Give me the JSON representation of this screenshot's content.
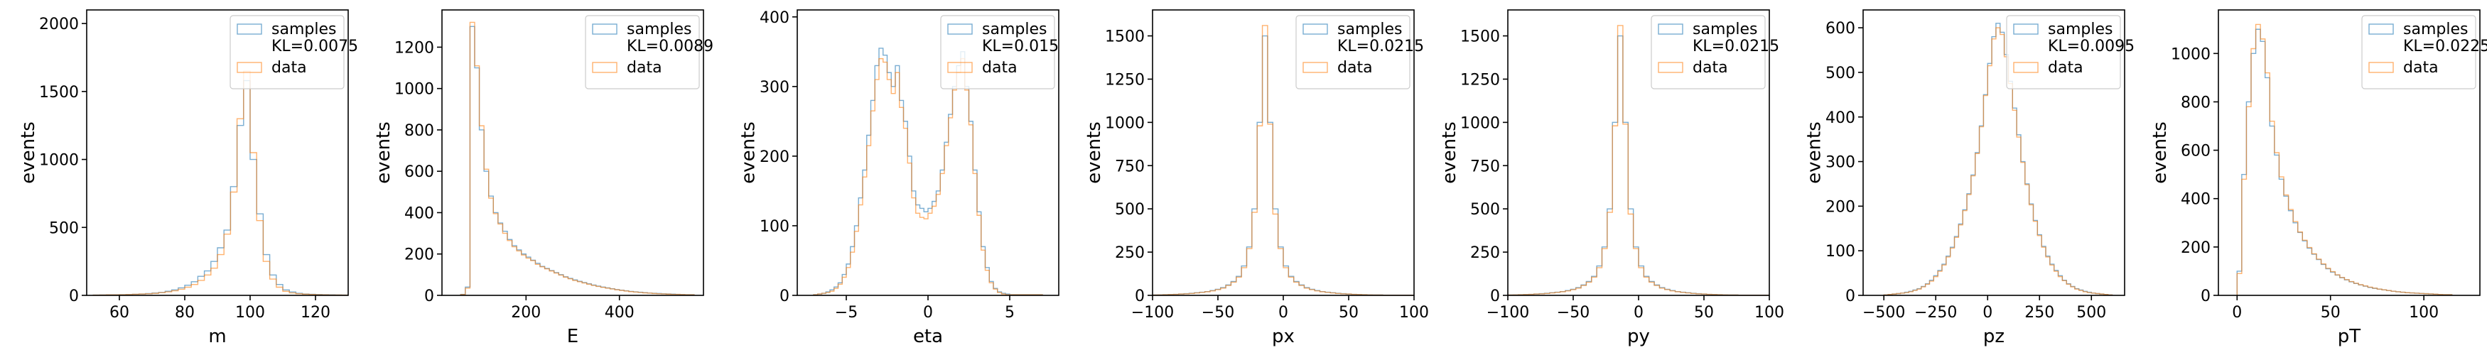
{
  "colors": {
    "samples": "#1f77b4",
    "data": "#ff7f0e"
  },
  "chart_data": [
    {
      "type": "histogram",
      "xlabel": "m",
      "ylabel": "events",
      "xlim": [
        50,
        130
      ],
      "ylim": [
        0,
        2100
      ],
      "xticks": [
        60,
        80,
        100,
        120
      ],
      "yticks": [
        0,
        500,
        1000,
        1500,
        2000
      ],
      "legend": {
        "position": "top-right",
        "entries": [
          "samples",
          "KL=0.0075",
          "data"
        ]
      },
      "bins": {
        "start": 52,
        "width": 2
      },
      "series": [
        {
          "name": "samples",
          "values": [
            2,
            3,
            4,
            4,
            5,
            6,
            8,
            10,
            13,
            17,
            22,
            30,
            40,
            55,
            75,
            100,
            140,
            180,
            250,
            350,
            480,
            800,
            1250,
            1580,
            1000,
            600,
            300,
            150,
            80,
            40,
            25,
            15,
            10,
            8,
            6,
            5,
            4,
            3,
            2,
            2
          ]
        },
        {
          "name": "data",
          "values": [
            2,
            3,
            4,
            4,
            5,
            6,
            8,
            10,
            12,
            15,
            20,
            26,
            34,
            45,
            60,
            80,
            110,
            150,
            200,
            300,
            450,
            760,
            1300,
            1650,
            1050,
            550,
            250,
            120,
            60,
            30,
            18,
            12,
            9,
            7,
            5,
            4,
            3,
            3,
            2,
            2
          ]
        }
      ]
    },
    {
      "type": "histogram",
      "xlabel": "E",
      "ylabel": "events",
      "xlim": [
        20,
        580
      ],
      "ylim": [
        0,
        1380
      ],
      "xticks": [
        200,
        400
      ],
      "yticks": [
        0,
        200,
        400,
        600,
        800,
        1000,
        1200
      ],
      "legend": {
        "position": "top-right",
        "entries": [
          "samples",
          "KL=0.0089",
          "data"
        ]
      },
      "bins": {
        "start": 60,
        "width": 10
      },
      "series": [
        {
          "name": "samples",
          "values": [
            5,
            40,
            1300,
            1100,
            800,
            600,
            480,
            400,
            350,
            310,
            270,
            240,
            220,
            200,
            185,
            170,
            155,
            140,
            130,
            120,
            110,
            100,
            90,
            82,
            75,
            68,
            62,
            56,
            50,
            45,
            40,
            36,
            32,
            28,
            25,
            22,
            19,
            17,
            15,
            13,
            11,
            10,
            9,
            8,
            7,
            6,
            5,
            4,
            3,
            3
          ]
        },
        {
          "name": "data",
          "values": [
            4,
            35,
            1320,
            1110,
            820,
            610,
            470,
            395,
            345,
            300,
            265,
            235,
            215,
            195,
            180,
            168,
            150,
            138,
            128,
            118,
            108,
            98,
            88,
            80,
            72,
            66,
            60,
            54,
            48,
            43,
            39,
            35,
            31,
            27,
            24,
            21,
            18,
            16,
            14,
            12,
            11,
            9,
            8,
            7,
            6,
            5,
            5,
            4,
            3,
            3
          ]
        }
      ]
    },
    {
      "type": "histogram",
      "xlabel": "eta",
      "ylabel": "events",
      "xlim": [
        -8,
        8
      ],
      "ylim": [
        0,
        410
      ],
      "xticks": [
        -5,
        0,
        5
      ],
      "yticks": [
        0,
        100,
        200,
        300,
        400
      ],
      "legend": {
        "position": "top-right",
        "entries": [
          "samples",
          "KL=0.015",
          "data"
        ]
      },
      "bins": {
        "start": -7,
        "width": 0.25
      },
      "series": [
        {
          "name": "samples",
          "values": [
            1,
            2,
            3,
            5,
            8,
            12,
            18,
            30,
            45,
            70,
            100,
            140,
            180,
            230,
            280,
            330,
            355,
            345,
            320,
            300,
            330,
            280,
            250,
            200,
            150,
            130,
            125,
            120,
            125,
            135,
            150,
            180,
            220,
            260,
            300,
            330,
            350,
            300,
            250,
            180,
            120,
            70,
            40,
            20,
            10,
            5,
            3,
            2,
            1,
            1,
            1,
            1,
            1,
            1,
            1,
            1
          ]
        },
        {
          "name": "data",
          "values": [
            1,
            2,
            3,
            4,
            6,
            10,
            16,
            26,
            40,
            62,
            92,
            130,
            170,
            215,
            265,
            310,
            340,
            335,
            310,
            290,
            320,
            270,
            240,
            190,
            140,
            118,
            112,
            110,
            118,
            128,
            145,
            175,
            215,
            255,
            295,
            320,
            340,
            295,
            245,
            175,
            115,
            65,
            36,
            18,
            9,
            4,
            2,
            1,
            1,
            1,
            1,
            1,
            1,
            1,
            1,
            1
          ]
        }
      ]
    },
    {
      "type": "histogram",
      "xlabel": "px",
      "ylabel": "events",
      "xlim": [
        -100,
        100
      ],
      "ylim": [
        0,
        1650
      ],
      "xticks": [
        -100,
        -50,
        0,
        50,
        100
      ],
      "yticks": [
        0,
        250,
        500,
        750,
        1000,
        1250,
        1500
      ],
      "legend": {
        "position": "top-right",
        "entries": [
          "samples",
          "KL=0.0215",
          "data"
        ]
      },
      "bins": {
        "start": -100,
        "width": 4
      },
      "series": [
        {
          "name": "samples",
          "values": [
            2,
            3,
            4,
            5,
            6,
            8,
            10,
            12,
            15,
            18,
            22,
            28,
            35,
            45,
            60,
            80,
            110,
            170,
            280,
            500,
            1000,
            1500,
            1000,
            500,
            280,
            170,
            110,
            80,
            60,
            45,
            35,
            28,
            22,
            18,
            15,
            12,
            10,
            8,
            6,
            5,
            4,
            3,
            2,
            2,
            1,
            1,
            1,
            1,
            1,
            1
          ]
        },
        {
          "name": "data",
          "values": [
            2,
            3,
            4,
            5,
            6,
            8,
            9,
            11,
            14,
            17,
            21,
            26,
            33,
            42,
            57,
            76,
            105,
            160,
            270,
            480,
            980,
            1560,
            990,
            470,
            270,
            160,
            105,
            76,
            57,
            42,
            33,
            26,
            21,
            17,
            14,
            11,
            9,
            8,
            6,
            5,
            4,
            3,
            2,
            2,
            1,
            1,
            1,
            1,
            1,
            1
          ]
        }
      ]
    },
    {
      "type": "histogram",
      "xlabel": "py",
      "ylabel": "events",
      "xlim": [
        -100,
        100
      ],
      "ylim": [
        0,
        1650
      ],
      "xticks": [
        -100,
        -50,
        0,
        50,
        100
      ],
      "yticks": [
        0,
        250,
        500,
        750,
        1000,
        1250,
        1500
      ],
      "legend": {
        "position": "top-right",
        "entries": [
          "samples",
          "KL=0.0215",
          "data"
        ]
      },
      "bins": {
        "start": -100,
        "width": 4
      },
      "series": [
        {
          "name": "samples",
          "values": [
            2,
            3,
            4,
            5,
            6,
            8,
            10,
            12,
            15,
            18,
            22,
            28,
            35,
            45,
            60,
            80,
            110,
            170,
            280,
            500,
            1000,
            1500,
            1000,
            500,
            280,
            170,
            110,
            80,
            60,
            45,
            35,
            28,
            22,
            18,
            15,
            12,
            10,
            8,
            6,
            5,
            4,
            3,
            2,
            2,
            1,
            1,
            1,
            1,
            1,
            1
          ]
        },
        {
          "name": "data",
          "values": [
            2,
            3,
            4,
            5,
            6,
            8,
            9,
            11,
            14,
            17,
            21,
            26,
            33,
            42,
            57,
            76,
            105,
            160,
            270,
            480,
            980,
            1560,
            990,
            470,
            270,
            160,
            105,
            76,
            57,
            42,
            33,
            26,
            21,
            17,
            14,
            11,
            9,
            8,
            6,
            5,
            4,
            3,
            2,
            2,
            1,
            1,
            1,
            1,
            1,
            1
          ]
        }
      ]
    },
    {
      "type": "histogram",
      "xlabel": "pz",
      "ylabel": "events",
      "xlim": [
        -600,
        660
      ],
      "ylim": [
        0,
        640
      ],
      "xticks": [
        -500,
        -250,
        0,
        250,
        500
      ],
      "yticks": [
        0,
        100,
        200,
        300,
        400,
        500,
        600
      ],
      "legend": {
        "position": "top-right",
        "entries": [
          "samples",
          "KL=0.0095",
          "data"
        ]
      },
      "bins": {
        "start": -500,
        "width": 20
      },
      "series": [
        {
          "name": "samples",
          "values": [
            1,
            2,
            3,
            4,
            5,
            7,
            9,
            12,
            15,
            20,
            26,
            34,
            44,
            56,
            70,
            88,
            108,
            132,
            160,
            192,
            228,
            270,
            320,
            380,
            450,
            520,
            580,
            610,
            590,
            540,
            480,
            420,
            360,
            300,
            250,
            205,
            168,
            136,
            110,
            88,
            70,
            56,
            44,
            34,
            26,
            20,
            15,
            12,
            9,
            7,
            5,
            4,
            3,
            2,
            1
          ]
        },
        {
          "name": "data",
          "values": [
            1,
            2,
            3,
            4,
            5,
            6,
            8,
            11,
            14,
            19,
            25,
            32,
            42,
            54,
            68,
            86,
            106,
            130,
            158,
            190,
            226,
            268,
            318,
            378,
            448,
            515,
            575,
            600,
            585,
            535,
            475,
            415,
            355,
            298,
            248,
            203,
            166,
            134,
            108,
            86,
            68,
            54,
            42,
            33,
            25,
            19,
            14,
            11,
            8,
            6,
            5,
            4,
            3,
            2,
            1
          ]
        }
      ]
    },
    {
      "type": "histogram",
      "xlabel": "pT",
      "ylabel": "events",
      "xlim": [
        -10,
        130
      ],
      "ylim": [
        0,
        1180
      ],
      "xticks": [
        0,
        50,
        100
      ],
      "yticks": [
        0,
        200,
        400,
        600,
        800,
        1000
      ],
      "legend": {
        "position": "top-right",
        "entries": [
          "samples",
          "KL=0.0225",
          "data"
        ]
      },
      "bins": {
        "start": 0,
        "width": 2.5
      },
      "series": [
        {
          "name": "samples",
          "values": [
            100,
            500,
            800,
            1000,
            1100,
            1050,
            900,
            700,
            580,
            480,
            410,
            350,
            300,
            260,
            225,
            195,
            170,
            148,
            128,
            110,
            96,
            84,
            73,
            64,
            56,
            49,
            43,
            38,
            33,
            29,
            26,
            23,
            20,
            17,
            15,
            13,
            11,
            10,
            9,
            8,
            7,
            6,
            5,
            4,
            3,
            3
          ]
        },
        {
          "name": "data",
          "values": [
            90,
            480,
            780,
            1020,
            1120,
            1060,
            920,
            720,
            590,
            490,
            415,
            355,
            305,
            262,
            228,
            198,
            172,
            150,
            130,
            112,
            98,
            85,
            74,
            65,
            57,
            50,
            44,
            39,
            34,
            30,
            26,
            23,
            20,
            17,
            15,
            13,
            11,
            10,
            9,
            8,
            7,
            6,
            5,
            4,
            3,
            3
          ]
        }
      ]
    }
  ]
}
